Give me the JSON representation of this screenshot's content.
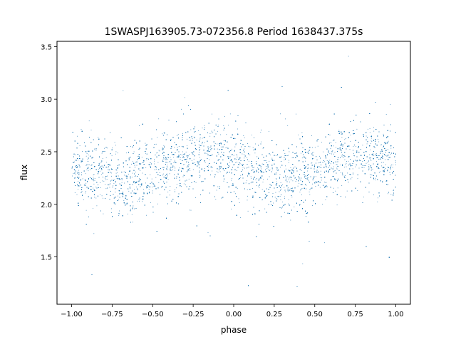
{
  "chart_data": {
    "type": "scatter",
    "title": "1SWASPJ163905.73-072356.8 Period 1638437.375s",
    "xlabel": "phase",
    "ylabel": "flux",
    "xlim": [
      -1.09,
      1.09
    ],
    "ylim": [
      1.05,
      3.55
    ],
    "xticks": [
      -1.0,
      -0.75,
      -0.5,
      -0.25,
      0.0,
      0.25,
      0.5,
      0.75,
      1.0
    ],
    "xtick_labels": [
      "−1.00",
      "−0.75",
      "−0.50",
      "−0.25",
      "0.00",
      "0.25",
      "0.50",
      "0.75",
      "1.00"
    ],
    "yticks": [
      1.5,
      2.0,
      2.5,
      3.0,
      3.5
    ],
    "ytick_labels": [
      "1.5",
      "2.0",
      "2.5",
      "3.0",
      "3.5"
    ],
    "grid": false,
    "legend": "none",
    "color": "#1f77b4",
    "distribution": {
      "x_range": [
        -1.0,
        1.0
      ],
      "typical_flux_range": [
        2.0,
        2.7
      ],
      "mean_flux": 2.35,
      "flux_extent": [
        1.15,
        3.45
      ],
      "approx_point_count": 16000
    }
  }
}
